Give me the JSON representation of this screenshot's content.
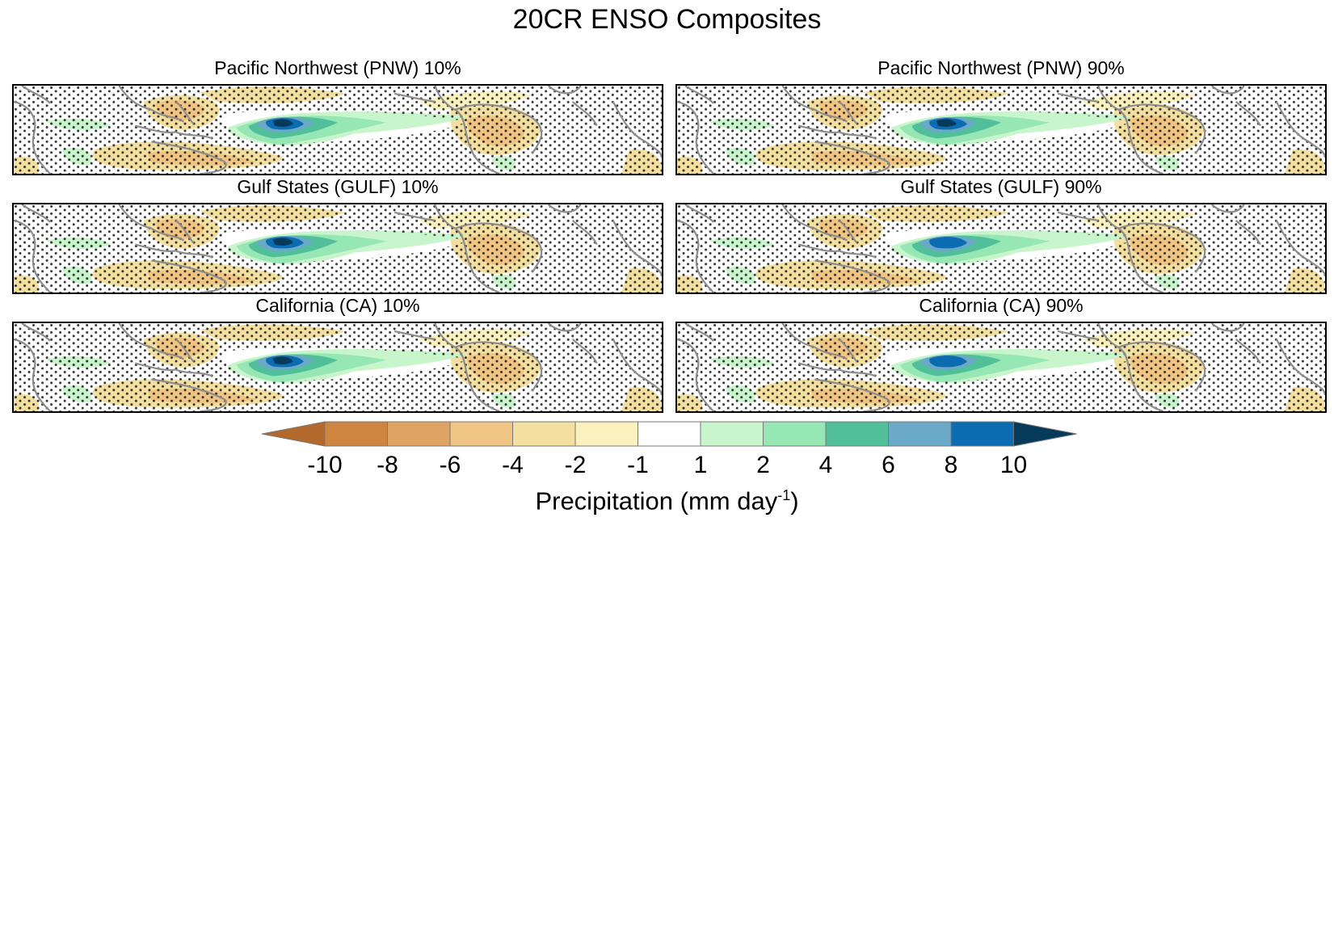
{
  "figure": {
    "title": "20CR ENSO Composites"
  },
  "panels": [
    {
      "title": "Pacific Northwest (PNW) 10%",
      "col": 0,
      "row": 0,
      "intensity": 1.0
    },
    {
      "title": "Pacific Northwest (PNW) 90%",
      "col": 1,
      "row": 0,
      "intensity": 0.95
    },
    {
      "title": "Gulf States (GULF) 10%",
      "col": 0,
      "row": 1,
      "intensity": 0.97
    },
    {
      "title": "Gulf States (GULF) 90%",
      "col": 1,
      "row": 1,
      "intensity": 0.93
    },
    {
      "title": "California (CA) 10%",
      "col": 0,
      "row": 2,
      "intensity": 1.0
    },
    {
      "title": "California (CA) 90%",
      "col": 1,
      "row": 2,
      "intensity": 0.9
    }
  ],
  "colorbar": {
    "label_main": "Precipitation (mm day",
    "label_sup": "-1",
    "label_end": ")",
    "ticks": [
      "-10",
      "-8",
      "-6",
      "-4",
      "-2",
      "-1",
      "1",
      "2",
      "4",
      "6",
      "8",
      "10"
    ],
    "colors": [
      "#b3692c",
      "#cd8540",
      "#dfa463",
      "#f0c584",
      "#f3dfa0",
      "#fbf1be",
      "#ffffff",
      "#c9f5cd",
      "#96e7b3",
      "#52bf9b",
      "#6ba9c9",
      "#0b6cb2",
      "#063a5a"
    ]
  }
}
